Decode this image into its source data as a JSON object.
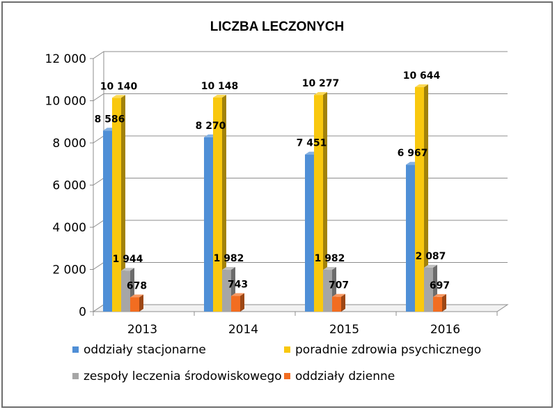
{
  "chart_data": {
    "type": "bar",
    "title": "LICZBA LECZONYCH",
    "categories": [
      "2013",
      "2014",
      "2015",
      "2016"
    ],
    "ylim": [
      0,
      12000
    ],
    "yticks": [
      0,
      2000,
      4000,
      6000,
      8000,
      10000,
      12000
    ],
    "ytick_labels": [
      "0",
      "2 000",
      "4 000",
      "6 000",
      "8 000",
      "10 000",
      "12 000"
    ],
    "grid": true,
    "legend_position": "bottom",
    "series": [
      {
        "name": "oddziały stacjonarne",
        "color": "#4f8fd6",
        "values": [
          8586,
          8270,
          7451,
          6967
        ],
        "labels": [
          "8 586",
          "8 270",
          "7 451",
          "6 967"
        ]
      },
      {
        "name": "poradnie zdrowia psychicznego",
        "color": "#f9c80e",
        "values": [
          10140,
          10148,
          10277,
          10644
        ],
        "labels": [
          "10 140",
          "10 148",
          "10 277",
          "10 644"
        ]
      },
      {
        "name": "zespoły leczenia środowiskowego",
        "color": "#a6a6a6",
        "values": [
          1944,
          1982,
          1982,
          2087
        ],
        "labels": [
          "1 944",
          "1 982",
          "1 982",
          "2 087"
        ]
      },
      {
        "name": "oddziały dzienne",
        "color": "#f26d21",
        "values": [
          678,
          743,
          707,
          697
        ],
        "labels": [
          "678",
          "743",
          "707",
          "697"
        ]
      }
    ]
  }
}
